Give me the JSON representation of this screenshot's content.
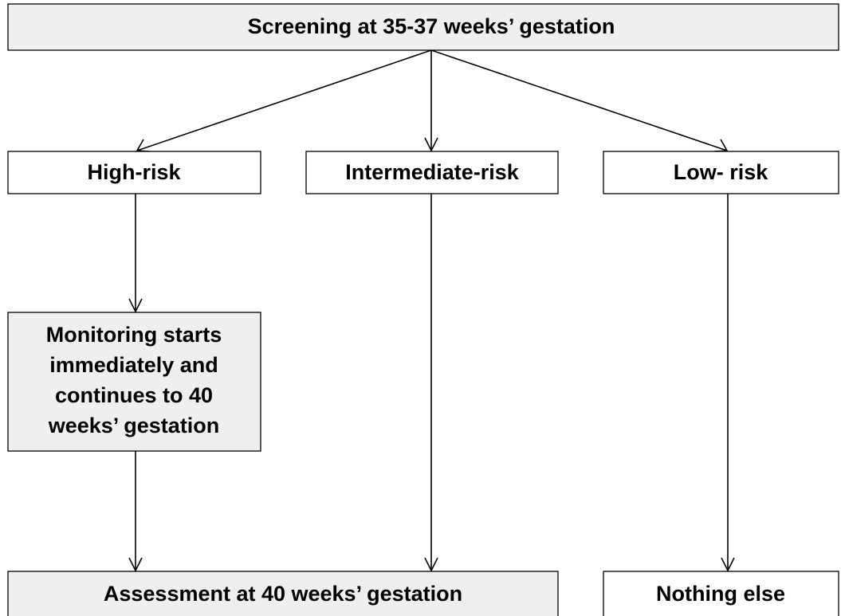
{
  "nodes": [
    {
      "label": "Screening at 35-37 weeks’ gestation"
    },
    {
      "label": "High-risk"
    },
    {
      "label": "Intermediate-risk"
    },
    {
      "label": "Low- risk"
    },
    {
      "lines": [
        "Monitoring starts",
        "immediately and",
        "continues to 40",
        "weeks’ gestation"
      ]
    },
    {
      "label": "Assessment at 40 weeks’ gestation"
    },
    {
      "label": "Nothing else"
    }
  ]
}
